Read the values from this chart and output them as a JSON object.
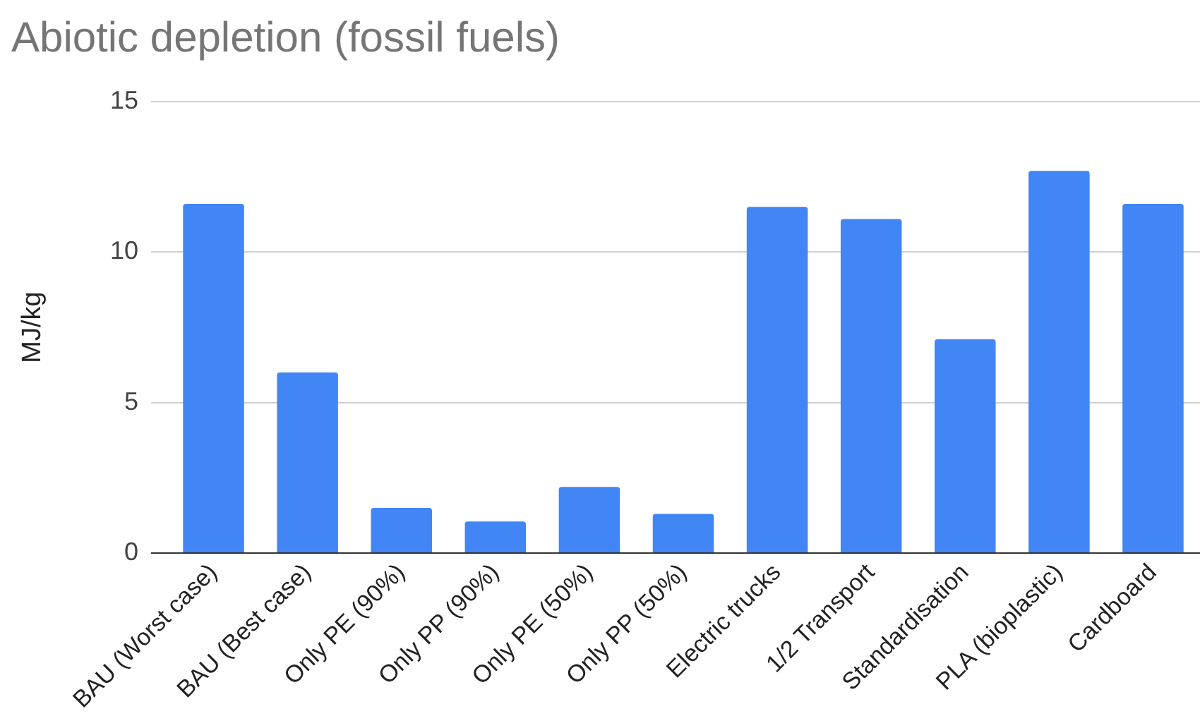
{
  "chart_data": {
    "type": "bar",
    "title": "Abiotic depletion (fossil fuels)",
    "ylabel": "MJ/kg",
    "categories": [
      "BAU (Worst case)",
      "BAU (Best case)",
      "Only PE (90%)",
      "Only PP (90%)",
      "Only PE (50%)",
      "Only PP (50%)",
      "Electric trucks",
      "1/2 Transport",
      "Standardisation",
      "PLA (bioplastic)",
      "Cardboard"
    ],
    "values": [
      11.6,
      6.0,
      1.5,
      1.05,
      2.2,
      1.3,
      11.5,
      11.1,
      7.1,
      12.7,
      11.6
    ],
    "color": "#4285f4",
    "ylim": [
      0,
      15
    ],
    "yticks": [
      0,
      5,
      10,
      15
    ],
    "grid": "y",
    "legend": false
  }
}
